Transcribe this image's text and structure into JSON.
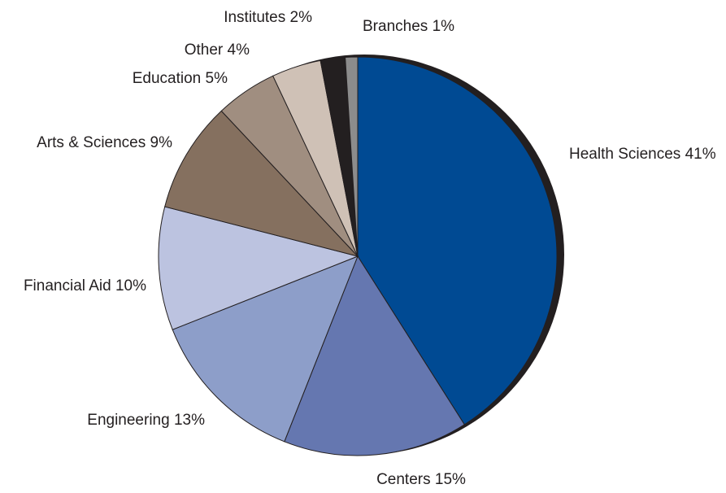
{
  "chart_data": {
    "type": "pie",
    "categories": [
      "Health Sciences",
      "Centers",
      "Engineering",
      "Financial Aid",
      "Arts & Sciences",
      "Education",
      "Other",
      "Institutes",
      "Branches"
    ],
    "values": [
      41,
      15,
      13,
      10,
      9,
      5,
      4,
      2,
      1
    ],
    "value_labels": [
      "41%",
      "15%",
      "13%",
      "10%",
      "9%",
      "5%",
      "4%",
      "2%",
      "1%"
    ],
    "colors": [
      "#004a93",
      "#6577b0",
      "#8d9ec9",
      "#bcc3e0",
      "#85705f",
      "#a08e80",
      "#cfc1b6",
      "#231f20",
      "#8c8c8c"
    ]
  }
}
